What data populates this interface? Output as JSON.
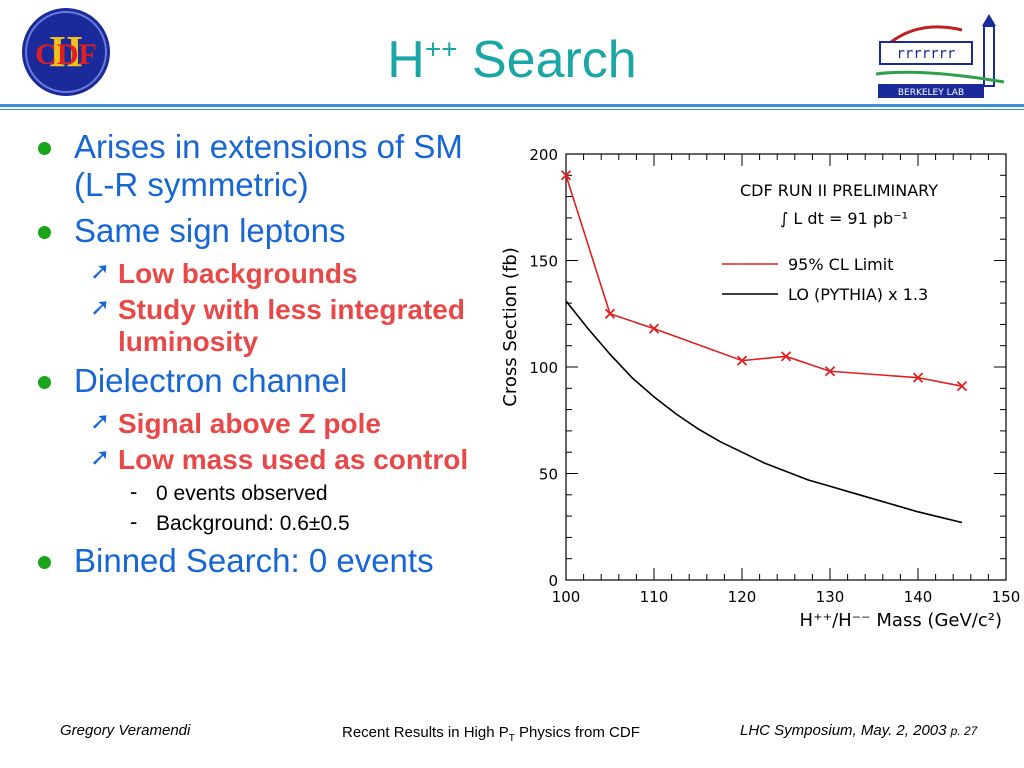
{
  "slide": {
    "title": "H",
    "title_sup": "++",
    "title_rest": " Search",
    "logo_left_text": "CDF",
    "logo_right_text": "BERKELEY LAB"
  },
  "bullets": {
    "b1": "Arises in extensions of SM (L-R symmetric)",
    "b2": "Same sign leptons",
    "b2_sub1": "Low backgrounds",
    "b2_sub2": "Study with less integrated luminosity",
    "b3": "Dielectron channel",
    "b3_sub1": "Signal above Z pole",
    "b3_sub2": "Low mass used as control",
    "b3_sub2_i1": "0 events observed",
    "b3_sub2_i2": "Background: 0.6±0.5",
    "b4": "Binned Search: 0 events"
  },
  "footer": {
    "left": "Gregory Veramendi",
    "mid_a": "Recent Results in High P",
    "mid_sub": "T",
    "mid_b": " Physics from CDF",
    "right": "LHC Symposium, May. 2, 2003",
    "page": "p. 27"
  },
  "colors": {
    "title": "#1aa6a6",
    "bullet_text": "#1666d6",
    "sub_text": "#e84848",
    "rule": "#3a8fd6",
    "limit_series": "#e02020",
    "lo_series": "#000000"
  },
  "chart_data": {
    "type": "line",
    "title": "CDF RUN II PRELIMINARY",
    "subtitle": "∫ L dt = 91 pb⁻¹",
    "xlabel": "H⁺⁺/H⁻⁻ Mass (GeV/c²)",
    "ylabel": "Cross Section (fb)",
    "xlim": [
      100,
      150
    ],
    "ylim": [
      0,
      200
    ],
    "xticks": [
      100,
      110,
      120,
      130,
      140,
      150
    ],
    "yticks": [
      0,
      50,
      100,
      150,
      200
    ],
    "legend_position": "top-right",
    "series": [
      {
        "name": "95% CL Limit",
        "color": "#e02020",
        "marker": "x",
        "x": [
          100,
          105,
          110,
          120,
          125,
          130,
          140,
          145
        ],
        "y": [
          190,
          125,
          118,
          103,
          105,
          98,
          95,
          91
        ]
      },
      {
        "name": "LO (PYTHIA) x 1.3",
        "color": "#000000",
        "marker": "none",
        "x": [
          100,
          102.5,
          105,
          107.5,
          110,
          112.5,
          115,
          117.5,
          120,
          122.5,
          125,
          127.5,
          130,
          132.5,
          135,
          137.5,
          140,
          142.5,
          145
        ],
        "y": [
          131,
          118,
          106,
          95,
          86,
          78,
          71,
          65,
          60,
          55,
          51,
          47,
          44,
          41,
          38,
          35,
          32,
          29.5,
          27
        ]
      }
    ]
  }
}
